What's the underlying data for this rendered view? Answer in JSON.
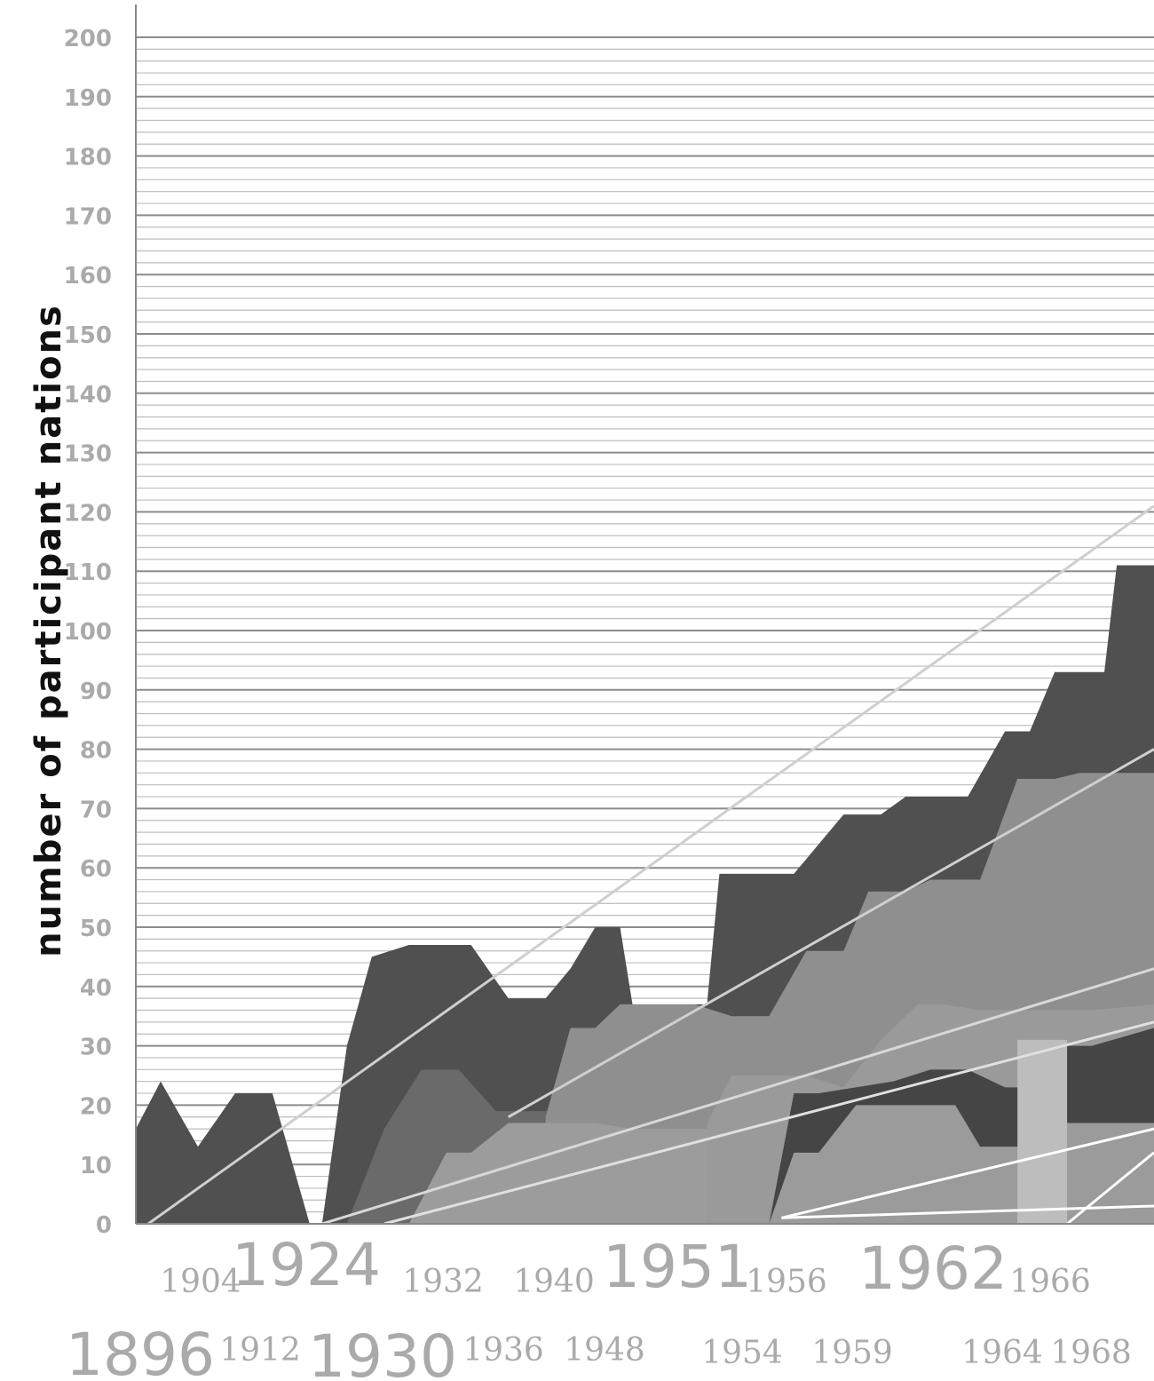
{
  "chart_data": {
    "type": "area",
    "title": "",
    "ylabel": "number of participant nations",
    "xlabel": "",
    "ylim": [
      0,
      200
    ],
    "y_ticks": [
      "0",
      "10",
      "20",
      "30",
      "40",
      "50",
      "60",
      "70",
      "80",
      "90",
      "100",
      "110",
      "120",
      "130",
      "140",
      "150",
      "160",
      "170",
      "180",
      "190",
      "200"
    ],
    "grid": true,
    "year_labels": [
      {
        "text": "1896",
        "size": "large"
      },
      {
        "text": "1904",
        "size": "small"
      },
      {
        "text": "1912",
        "size": "small"
      },
      {
        "text": "1924",
        "size": "large"
      },
      {
        "text": "1930",
        "size": "large"
      },
      {
        "text": "1932",
        "size": "small"
      },
      {
        "text": "1936",
        "size": "small"
      },
      {
        "text": "1940",
        "size": "small"
      },
      {
        "text": "1948",
        "size": "small"
      },
      {
        "text": "1951",
        "size": "large"
      },
      {
        "text": "1954",
        "size": "small"
      },
      {
        "text": "1956",
        "size": "small"
      },
      {
        "text": "1959",
        "size": "small"
      },
      {
        "text": "1962",
        "size": "large"
      },
      {
        "text": "1964",
        "size": "small"
      },
      {
        "text": "1966",
        "size": "small"
      },
      {
        "text": "1968",
        "size": "small"
      }
    ],
    "series": [
      {
        "color": "#505050",
        "points": [
          [
            1896,
            16
          ],
          [
            1898,
            24
          ],
          [
            1901,
            13
          ],
          [
            1904,
            22
          ],
          [
            1907,
            22
          ],
          [
            1910,
            0
          ],
          [
            1911,
            0
          ],
          [
            1913,
            30
          ],
          [
            1915,
            45
          ],
          [
            1918,
            47
          ],
          [
            1923,
            47
          ],
          [
            1926,
            38
          ],
          [
            1929,
            38
          ],
          [
            1931,
            43
          ],
          [
            1933,
            50
          ],
          [
            1935,
            50
          ],
          [
            1936,
            37
          ],
          [
            1942,
            37
          ],
          [
            1943,
            59
          ],
          [
            1947,
            59
          ],
          [
            1949,
            59
          ],
          [
            1953,
            69
          ],
          [
            1956,
            69
          ],
          [
            1958,
            72
          ],
          [
            1961,
            72
          ],
          [
            1963,
            72
          ],
          [
            1966,
            83
          ],
          [
            1968,
            83
          ],
          [
            1970,
            93
          ],
          [
            1974,
            93
          ],
          [
            1975,
            111
          ],
          [
            1978,
            111
          ]
        ]
      },
      {
        "color": "#6a6a6a",
        "points": [
          [
            1913,
            0
          ],
          [
            1916,
            16
          ],
          [
            1919,
            26
          ],
          [
            1922,
            26
          ],
          [
            1925,
            19
          ],
          [
            1933,
            19
          ],
          [
            1934,
            29
          ],
          [
            1936,
            29
          ],
          [
            1936,
            19
          ],
          [
            1942,
            19
          ],
          [
            1943,
            29
          ],
          [
            1946,
            29
          ],
          [
            1948,
            30
          ],
          [
            1950,
            31
          ],
          [
            1953,
            31
          ],
          [
            1956,
            33
          ],
          [
            1959,
            33
          ],
          [
            1961,
            33
          ],
          [
            1964,
            35
          ],
          [
            1967,
            35
          ],
          [
            1970,
            37
          ],
          [
            1973,
            37
          ],
          [
            1978,
            38
          ]
        ]
      },
      {
        "color": "#8f8f8f",
        "points": [
          [
            1929,
            18
          ],
          [
            1931,
            33
          ],
          [
            1933,
            33
          ],
          [
            1935,
            37
          ],
          [
            1941,
            37
          ],
          [
            1944,
            35
          ],
          [
            1947,
            35
          ],
          [
            1950,
            46
          ],
          [
            1953,
            46
          ],
          [
            1955,
            56
          ],
          [
            1958,
            56
          ],
          [
            1960,
            58
          ],
          [
            1964,
            58
          ],
          [
            1967,
            75
          ],
          [
            1970,
            75
          ],
          [
            1972,
            76
          ],
          [
            1978,
            76
          ]
        ]
      },
      {
        "color": "#9c9c9c",
        "points": [
          [
            1918,
            0
          ],
          [
            1921,
            12
          ],
          [
            1923,
            12
          ],
          [
            1926,
            17
          ],
          [
            1933,
            17
          ],
          [
            1936,
            16
          ],
          [
            1943,
            16
          ],
          [
            1945,
            13
          ],
          [
            1947,
            0
          ]
        ]
      },
      {
        "color": "#9a9a9a",
        "points": [
          [
            1942,
            17
          ],
          [
            1944,
            25
          ],
          [
            1947,
            25
          ],
          [
            1950,
            25
          ],
          [
            1953,
            23
          ],
          [
            1956,
            31
          ],
          [
            1959,
            37
          ],
          [
            1961,
            37
          ],
          [
            1964,
            36
          ],
          [
            1967,
            36
          ],
          [
            1970,
            36
          ],
          [
            1973,
            36
          ],
          [
            1978,
            37
          ]
        ]
      },
      {
        "color": "#454545",
        "points": [
          [
            1947,
            0
          ],
          [
            1949,
            22
          ],
          [
            1951,
            22
          ],
          [
            1954,
            23
          ],
          [
            1957,
            24
          ],
          [
            1960,
            26
          ],
          [
            1963,
            26
          ],
          [
            1966,
            23
          ],
          [
            1968,
            23
          ],
          [
            1970,
            30
          ],
          [
            1973,
            30
          ],
          [
            1978,
            33
          ]
        ]
      },
      {
        "color": "#9b9b9b",
        "points": [
          [
            1947,
            0
          ],
          [
            1949,
            12
          ],
          [
            1951,
            12
          ],
          [
            1954,
            20
          ],
          [
            1957,
            20
          ],
          [
            1959,
            20
          ],
          [
            1960,
            20
          ],
          [
            1962,
            20
          ],
          [
            1964,
            13
          ],
          [
            1966,
            13
          ],
          [
            1968,
            13
          ],
          [
            1970,
            17
          ],
          [
            1973,
            17
          ],
          [
            1978,
            17
          ]
        ]
      },
      {
        "color": "#bdbdbd",
        "points": [
          [
            1967,
            23
          ],
          [
            1967,
            31
          ],
          [
            1971,
            31
          ],
          [
            1971,
            23
          ]
        ]
      }
    ],
    "trend_lines": [
      {
        "color": "#cfcfcf",
        "from": [
          1897,
          0
        ],
        "to": [
          1978,
          121
        ]
      },
      {
        "color": "#cfcfcf",
        "from": [
          1926,
          18
        ],
        "to": [
          1978,
          80
        ]
      },
      {
        "color": "#d8d8d8",
        "from": [
          1911,
          0
        ],
        "to": [
          1978,
          43
        ]
      },
      {
        "color": "#e0e0e0",
        "from": [
          1916,
          0
        ],
        "to": [
          1978,
          34
        ]
      },
      {
        "color": "#ffffff",
        "from": [
          1948,
          1
        ],
        "to": [
          1978,
          16
        ]
      },
      {
        "color": "#ffffff",
        "from": [
          1948,
          1
        ],
        "to": [
          1978,
          3
        ]
      },
      {
        "color": "#ffffff",
        "from": [
          1971,
          0
        ],
        "to": [
          1978,
          12
        ]
      }
    ]
  }
}
